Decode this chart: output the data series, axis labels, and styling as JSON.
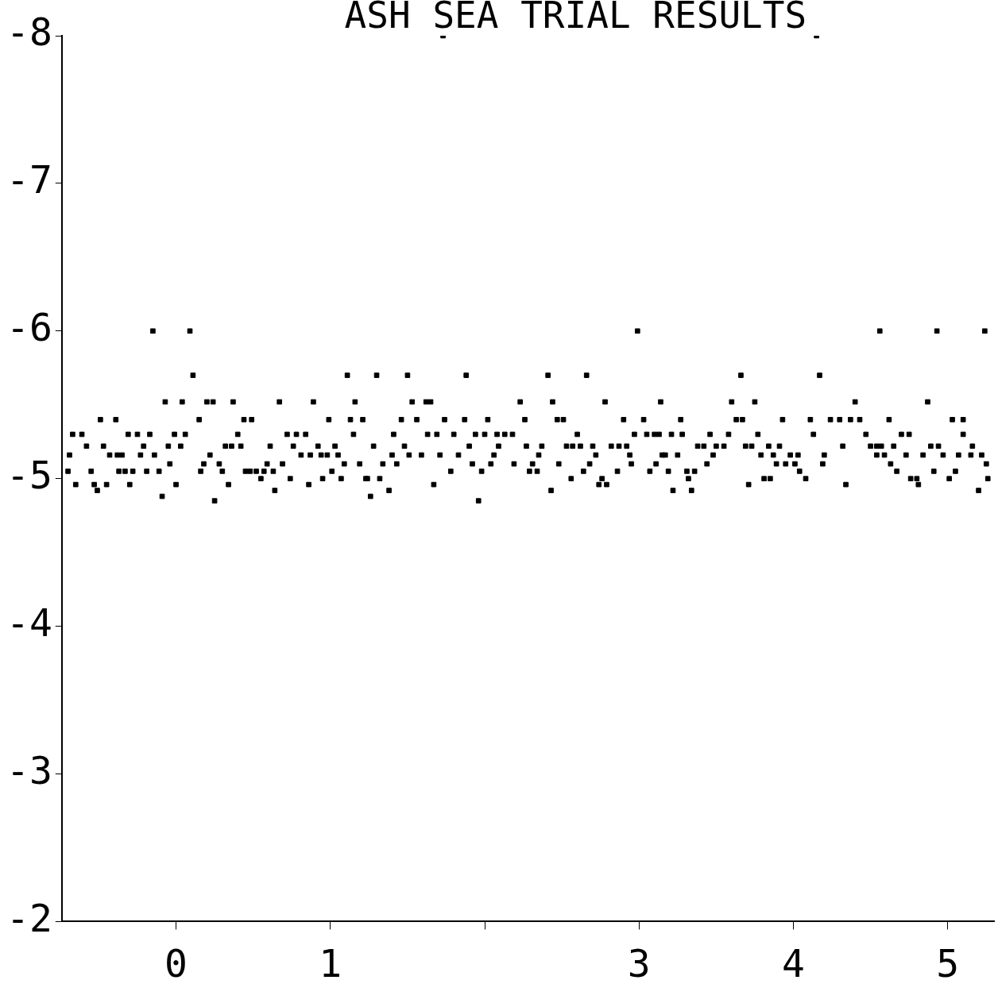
{
  "chart_data": {
    "type": "scatter",
    "title": "ASH SEA TRIAL RESULTS",
    "x": [
      -0.15,
      0.09,
      2.99,
      4.56,
      4.93,
      5.24,
      1.73,
      4.15,
      0.11,
      1.11,
      1.3,
      1.5,
      1.88,
      2.41,
      2.66,
      3.66,
      4.17,
      -0.07,
      0.04,
      0.2,
      0.24,
      0.37,
      0.67,
      0.89,
      1.16,
      1.53,
      1.62,
      1.65,
      2.23,
      2.44,
      2.78,
      3.14,
      3.6,
      3.75,
      4.4,
      4.87,
      -0.49,
      -0.39,
      0.15,
      0.44,
      0.49,
      0.99,
      1.13,
      1.21,
      1.46,
      1.56,
      1.74,
      1.87,
      2.02,
      2.26,
      2.47,
      2.51,
      2.9,
      3.03,
      3.27,
      3.63,
      3.67,
      3.93,
      4.11,
      4.24,
      4.3,
      4.37,
      4.43,
      4.62,
      5.03,
      5.1,
      -0.67,
      -0.61,
      -0.31,
      -0.25,
      -0.17,
      -0.01,
      0.06,
      0.4,
      0.72,
      0.78,
      0.84,
      1.15,
      1.41,
      1.63,
      1.69,
      1.8,
      1.94,
      2.0,
      2.08,
      2.13,
      2.18,
      2.6,
      2.97,
      3.05,
      3.1,
      3.13,
      3.21,
      3.28,
      3.46,
      3.58,
      3.77,
      4.13,
      4.47,
      4.7,
      4.75,
      5.1,
      -0.58,
      -0.47,
      -0.21,
      -0.05,
      0.03,
      0.32,
      0.36,
      0.42,
      0.61,
      0.76,
      0.92,
      1.03,
      1.28,
      1.48,
      1.9,
      2.09,
      2.27,
      2.37,
      2.53,
      2.57,
      2.62,
      2.7,
      2.82,
      2.87,
      2.92,
      3.38,
      3.42,
      3.5,
      3.55,
      3.69,
      3.73,
      3.84,
      3.91,
      4.32,
      4.5,
      4.54,
      4.57,
      4.65,
      4.89,
      4.94,
      5.16,
      -0.69,
      -0.43,
      -0.38,
      -0.35,
      -0.23,
      -0.14,
      0.22,
      0.81,
      0.87,
      0.94,
      0.98,
      1.05,
      1.4,
      1.51,
      1.59,
      1.71,
      1.83,
      2.06,
      2.35,
      2.72,
      2.94,
      3.15,
      3.17,
      3.25,
      3.48,
      3.79,
      3.87,
      3.98,
      4.03,
      4.2,
      4.54,
      4.59,
      4.73,
      4.84,
      4.97,
      5.07,
      5.15,
      5.22,
      -0.04,
      0.18,
      0.28,
      0.59,
      0.69,
      1.09,
      1.19,
      1.34,
      1.43,
      1.92,
      2.04,
      2.19,
      2.31,
      2.48,
      2.68,
      2.95,
      3.11,
      3.44,
      3.89,
      3.95,
      4.01,
      4.19,
      4.63,
      5.25,
      -0.7,
      -0.55,
      -0.37,
      -0.33,
      -0.28,
      -0.19,
      -0.11,
      0.16,
      0.3,
      0.45,
      0.48,
      0.52,
      0.57,
      0.63,
      1.01,
      1.78,
      1.98,
      2.29,
      2.34,
      2.64,
      2.86,
      3.07,
      3.19,
      3.31,
      3.36,
      4.04,
      4.67,
      4.91,
      5.05,
      0.55,
      0.74,
      0.95,
      1.07,
      1.23,
      1.24,
      1.32,
      2.56,
      2.76,
      3.32,
      3.81,
      3.85,
      4.08,
      4.76,
      4.8,
      5.01,
      5.26,
      -0.65,
      -0.53,
      -0.45,
      -0.3,
      0.0,
      0.34,
      0.86,
      1.67,
      2.74,
      2.79,
      3.71,
      4.34,
      4.81,
      -0.51,
      0.64,
      1.38,
      2.43,
      3.22,
      3.34,
      5.2,
      -0.09,
      1.26,
      0.25,
      1.96
    ],
    "values": [
      -6.0,
      -6.0,
      -6.0,
      -6.0,
      -6.0,
      -6.0,
      -8.0,
      -8.0,
      -5.7,
      -5.7,
      -5.7,
      -5.7,
      -5.7,
      -5.7,
      -5.7,
      -5.7,
      -5.7,
      -5.52,
      -5.52,
      -5.52,
      -5.52,
      -5.52,
      -5.52,
      -5.52,
      -5.52,
      -5.52,
      -5.52,
      -5.52,
      -5.52,
      -5.52,
      -5.52,
      -5.52,
      -5.52,
      -5.52,
      -5.52,
      -5.52,
      -5.4,
      -5.4,
      -5.4,
      -5.4,
      -5.4,
      -5.4,
      -5.4,
      -5.4,
      -5.4,
      -5.4,
      -5.4,
      -5.4,
      -5.4,
      -5.4,
      -5.4,
      -5.4,
      -5.4,
      -5.4,
      -5.4,
      -5.4,
      -5.4,
      -5.4,
      -5.4,
      -5.4,
      -5.4,
      -5.4,
      -5.4,
      -5.4,
      -5.4,
      -5.4,
      -5.3,
      -5.3,
      -5.3,
      -5.3,
      -5.3,
      -5.3,
      -5.3,
      -5.3,
      -5.3,
      -5.3,
      -5.3,
      -5.3,
      -5.3,
      -5.3,
      -5.3,
      -5.3,
      -5.3,
      -5.3,
      -5.3,
      -5.3,
      -5.3,
      -5.3,
      -5.3,
      -5.3,
      -5.3,
      -5.3,
      -5.3,
      -5.3,
      -5.3,
      -5.3,
      -5.3,
      -5.3,
      -5.3,
      -5.3,
      -5.3,
      -5.3,
      -5.22,
      -5.22,
      -5.22,
      -5.22,
      -5.22,
      -5.22,
      -5.22,
      -5.22,
      -5.22,
      -5.22,
      -5.22,
      -5.22,
      -5.22,
      -5.22,
      -5.22,
      -5.22,
      -5.22,
      -5.22,
      -5.22,
      -5.22,
      -5.22,
      -5.22,
      -5.22,
      -5.22,
      -5.22,
      -5.22,
      -5.22,
      -5.22,
      -5.22,
      -5.22,
      -5.22,
      -5.22,
      -5.22,
      -5.22,
      -5.22,
      -5.22,
      -5.22,
      -5.22,
      -5.22,
      -5.22,
      -5.22,
      -5.16,
      -5.16,
      -5.16,
      -5.16,
      -5.16,
      -5.16,
      -5.16,
      -5.16,
      -5.16,
      -5.16,
      -5.16,
      -5.16,
      -5.16,
      -5.16,
      -5.16,
      -5.16,
      -5.16,
      -5.16,
      -5.16,
      -5.16,
      -5.16,
      -5.16,
      -5.16,
      -5.16,
      -5.16,
      -5.16,
      -5.16,
      -5.16,
      -5.16,
      -5.16,
      -5.16,
      -5.16,
      -5.16,
      -5.16,
      -5.16,
      -5.16,
      -5.16,
      -5.16,
      -5.1,
      -5.1,
      -5.1,
      -5.1,
      -5.1,
      -5.1,
      -5.1,
      -5.1,
      -5.1,
      -5.1,
      -5.1,
      -5.1,
      -5.1,
      -5.1,
      -5.1,
      -5.1,
      -5.1,
      -5.1,
      -5.1,
      -5.1,
      -5.1,
      -5.1,
      -5.1,
      -5.1,
      -5.05,
      -5.05,
      -5.05,
      -5.05,
      -5.05,
      -5.05,
      -5.05,
      -5.05,
      -5.05,
      -5.05,
      -5.05,
      -5.05,
      -5.05,
      -5.05,
      -5.05,
      -5.05,
      -5.05,
      -5.05,
      -5.05,
      -5.05,
      -5.05,
      -5.05,
      -5.05,
      -5.05,
      -5.05,
      -5.05,
      -5.05,
      -5.05,
      -5.05,
      -5.0,
      -5.0,
      -5.0,
      -5.0,
      -5.0,
      -5.0,
      -5.0,
      -5.0,
      -5.0,
      -5.0,
      -5.0,
      -5.0,
      -5.0,
      -5.0,
      -5.0,
      -5.0,
      -5.0,
      -4.96,
      -4.96,
      -4.96,
      -4.96,
      -4.96,
      -4.96,
      -4.96,
      -4.96,
      -4.96,
      -4.96,
      -4.96,
      -4.96,
      -4.96,
      -4.92,
      -4.92,
      -4.92,
      -4.92,
      -4.92,
      -4.92,
      -4.92,
      -4.88,
      -4.88,
      -4.85,
      -4.85
    ],
    "color": "#000000",
    "marker": "square",
    "xlim": [
      -0.74,
      5.3
    ],
    "ylim": [
      -2,
      -8
    ],
    "xticks": [
      0,
      1,
      {
        "value": 2,
        "label": null
      },
      3,
      4,
      5
    ],
    "yticks": [
      -2,
      -3,
      -4,
      -5,
      -6,
      -7,
      -8
    ],
    "grid": false,
    "legend": false
  }
}
